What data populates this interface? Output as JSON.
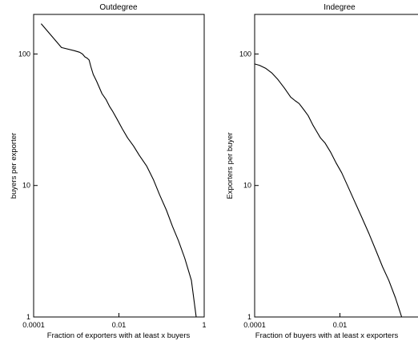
{
  "chart_data": [
    {
      "type": "line",
      "title": "Outdegree",
      "xlabel": "Fraction of exporters with at least x buyers",
      "ylabel": "buyers per exporter",
      "xscale": "log",
      "yscale": "log",
      "xlim": [
        0.0001,
        1
      ],
      "ylim": [
        1,
        200
      ],
      "xticks": [
        {
          "value": 0.0001,
          "label": "0.0001"
        },
        {
          "value": 0.01,
          "label": "0.01"
        },
        {
          "value": 1,
          "label": "1"
        }
      ],
      "yticks": [
        {
          "value": 1,
          "label": "1"
        },
        {
          "value": 10,
          "label": "10"
        },
        {
          "value": 100,
          "label": "100"
        }
      ],
      "grid": false,
      "series": [
        {
          "x": [
            0.00015,
            0.00045,
            0.0009,
            0.0012,
            0.0014,
            0.0016,
            0.0018,
            0.002,
            0.0022,
            0.0025,
            0.003,
            0.004,
            0.005,
            0.006,
            0.007,
            0.009,
            0.012,
            0.016,
            0.022,
            0.03,
            0.045,
            0.065,
            0.09,
            0.13,
            0.18,
            0.25,
            0.35,
            0.5,
            0.65
          ],
          "y": [
            170,
            112,
            106,
            103,
            100,
            95,
            93,
            90,
            80,
            70,
            62,
            50,
            45,
            40,
            37,
            32,
            27,
            23,
            20,
            17,
            14,
            11,
            8.5,
            6.5,
            4.9,
            3.8,
            2.8,
            1.9,
            1.0
          ]
        }
      ]
    },
    {
      "type": "line",
      "title": "Indegree",
      "xlabel": "Fraction of buyers with at least x exporters",
      "ylabel": "Exporters per buyer",
      "xscale": "log",
      "yscale": "log",
      "xlim": [
        0.0001,
        1
      ],
      "ylim": [
        1,
        200
      ],
      "xticks": [
        {
          "value": 0.0001,
          "label": "0.0001"
        },
        {
          "value": 0.01,
          "label": "0.01"
        }
      ],
      "yticks": [
        {
          "value": 1,
          "label": "1"
        },
        {
          "value": 10,
          "label": "10"
        },
        {
          "value": 100,
          "label": "100"
        }
      ],
      "grid": false,
      "series": [
        {
          "x": [
            0.0001,
            0.00013,
            0.00018,
            0.00025,
            0.00035,
            0.0005,
            0.0007,
            0.0009,
            0.0011,
            0.0014,
            0.0018,
            0.0023,
            0.0028,
            0.0035,
            0.0045,
            0.006,
            0.008,
            0.011,
            0.015,
            0.022,
            0.032,
            0.048,
            0.07,
            0.1,
            0.14,
            0.2,
            0.28
          ],
          "y": [
            84,
            82,
            78,
            72,
            64,
            55,
            47,
            44,
            42,
            38,
            34,
            29,
            26,
            23,
            21,
            18,
            15,
            12.5,
            10,
            7.6,
            5.8,
            4.3,
            3.2,
            2.4,
            1.9,
            1.4,
            1.0
          ]
        }
      ]
    }
  ]
}
